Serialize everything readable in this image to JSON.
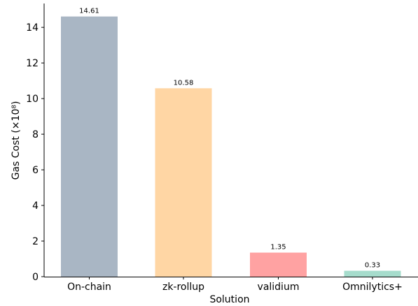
{
  "chart_data": {
    "type": "bar",
    "categories": [
      "On-chain",
      "zk-rollup",
      "validium",
      "Omnilytics+"
    ],
    "values": [
      14.61,
      10.58,
      1.35,
      0.33
    ],
    "value_labels": [
      "14.61",
      "10.58",
      "1.35",
      "0.33"
    ],
    "colors": [
      "#a9b6c4",
      "#ffd6a4",
      "#ffa2a2",
      "#a6dccc"
    ],
    "title": "",
    "xlabel": "Solution",
    "ylabel": "Gas Cost (×10⁸)",
    "ylim": [
      0,
      15.34
    ],
    "yticks": [
      0,
      2,
      4,
      6,
      8,
      10,
      12,
      14
    ],
    "ytick_labels": [
      "0",
      "2",
      "4",
      "6",
      "8",
      "10",
      "12",
      "14"
    ],
    "grid": false,
    "legend": "none"
  }
}
